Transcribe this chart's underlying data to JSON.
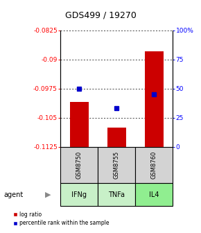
{
  "title": "GDS499 / 19270",
  "samples": [
    "GSM8750",
    "GSM8755",
    "GSM8760"
  ],
  "agents": [
    "IFNg",
    "TNFa",
    "IL4"
  ],
  "log_ratios": [
    -0.101,
    -0.1075,
    -0.088
  ],
  "percentile_ranks": [
    50,
    33,
    45
  ],
  "ylim_left": [
    -0.1125,
    -0.0825
  ],
  "yticks_left": [
    -0.0825,
    -0.09,
    -0.0975,
    -0.105,
    -0.1125
  ],
  "ytick_labels_left": [
    "-0.0825",
    "-0.09",
    "-0.0975",
    "-0.105",
    "-0.1125"
  ],
  "ylim_right": [
    0,
    100
  ],
  "yticks_right": [
    0,
    25,
    50,
    75,
    100
  ],
  "ytick_labels_right": [
    "0",
    "25",
    "50",
    "75",
    "100%"
  ],
  "bar_color": "#cc0000",
  "dot_color": "#0000cc",
  "agent_colors": [
    "#c8f0c8",
    "#c8f0c8",
    "#90ee90"
  ],
  "sample_box_color": "#d3d3d3",
  "bar_width": 0.5,
  "legend_bar_label": "log ratio",
  "legend_dot_label": "percentile rank within the sample"
}
